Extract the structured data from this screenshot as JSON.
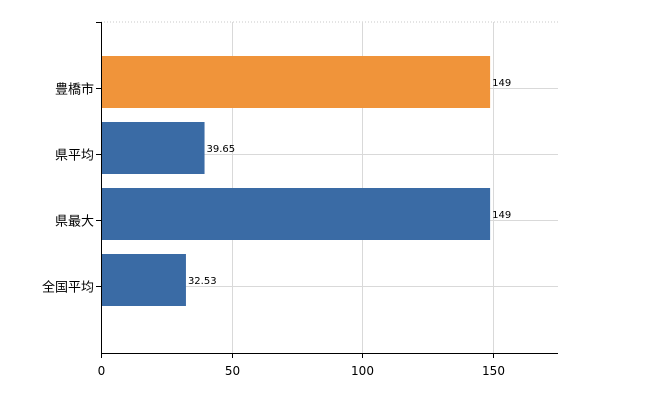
{
  "chart_data": {
    "type": "bar",
    "orientation": "horizontal",
    "categories": [
      "豊橋市",
      "県平均",
      "県最大",
      "全国平均"
    ],
    "values": [
      149,
      39.65,
      149,
      32.53
    ],
    "value_labels": [
      "149",
      "39.65",
      "149",
      "32.53"
    ],
    "bar_colors": [
      "#f0943a",
      "#3a6ba5",
      "#3a6ba5",
      "#3a6ba5"
    ],
    "xlim": [
      0,
      175
    ],
    "x_ticks": [
      0,
      50,
      100,
      150
    ],
    "x_tick_labels": [
      "0",
      "50",
      "100",
      "150"
    ],
    "title": "",
    "xlabel": "",
    "ylabel": "",
    "grid": true,
    "legend": "none"
  }
}
